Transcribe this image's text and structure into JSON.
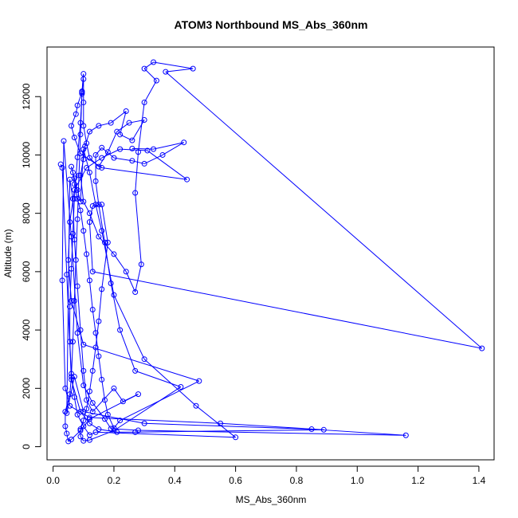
{
  "chart_data": {
    "type": "line",
    "title": "ATOM3 Northbound MS_Abs_360nm",
    "xlabel": "MS_Abs_360nm",
    "ylabel": "Altitude (m)",
    "xlim": [
      -0.02,
      1.45
    ],
    "ylim": [
      -450,
      13700
    ],
    "xticks": [
      "0.0",
      "0.2",
      "0.4",
      "0.6",
      "0.8",
      "1.0",
      "1.2",
      "1.4"
    ],
    "xtick_values": [
      0.0,
      0.2,
      0.4,
      0.6,
      0.8,
      1.0,
      1.2,
      1.4
    ],
    "yticks": [
      "0",
      "2000",
      "4000",
      "6000",
      "8000",
      "10000",
      "12000"
    ],
    "ytick_values": [
      0,
      2000,
      4000,
      6000,
      8000,
      10000,
      12000
    ],
    "grid": false,
    "series": [
      {
        "color": "#0000ff",
        "marker": "open-circle",
        "points": [
          [
            0.025,
            9680
          ],
          [
            0.03,
            9560
          ],
          [
            0.045,
            5900
          ],
          [
            0.06,
            2300
          ],
          [
            0.09,
            1200
          ],
          [
            0.12,
            800
          ],
          [
            0.15,
            600
          ],
          [
            0.21,
            500
          ],
          [
            0.27,
            500
          ],
          [
            0.89,
            580
          ],
          [
            0.55,
            800
          ],
          [
            0.12,
            1000
          ],
          [
            0.055,
            1400
          ],
          [
            0.04,
            2000
          ],
          [
            0.03,
            5700
          ],
          [
            0.035,
            10480
          ],
          [
            0.06,
            7200
          ],
          [
            0.08,
            3900
          ],
          [
            0.1,
            2100
          ],
          [
            0.13,
            1500
          ],
          [
            0.17,
            950
          ],
          [
            0.19,
            620
          ],
          [
            0.28,
            560
          ],
          [
            1.16,
            390
          ],
          [
            0.85,
            600
          ],
          [
            0.3,
            800
          ],
          [
            0.1,
            1200
          ],
          [
            0.07,
            2400
          ],
          [
            0.045,
            1150
          ],
          [
            0.055,
            9160
          ],
          [
            0.065,
            8500
          ],
          [
            0.07,
            7100
          ],
          [
            0.08,
            5500
          ],
          [
            0.09,
            4000
          ],
          [
            0.1,
            2600
          ],
          [
            0.11,
            1600
          ],
          [
            0.13,
            1200
          ],
          [
            0.2,
            2000
          ],
          [
            0.23,
            1550
          ],
          [
            0.28,
            1800
          ],
          [
            0.12,
            950
          ],
          [
            0.09,
            550
          ],
          [
            0.06,
            250
          ],
          [
            0.05,
            180
          ],
          [
            0.045,
            450
          ],
          [
            0.04,
            700
          ],
          [
            0.04,
            1200
          ],
          [
            0.055,
            1800
          ],
          [
            0.06,
            2400
          ],
          [
            0.065,
            3600
          ],
          [
            0.07,
            5000
          ],
          [
            0.075,
            6400
          ],
          [
            0.08,
            7800
          ],
          [
            0.085,
            9300
          ],
          [
            0.09,
            10700
          ],
          [
            0.095,
            12180
          ],
          [
            0.1,
            12780
          ],
          [
            0.095,
            12100
          ],
          [
            0.09,
            11100
          ],
          [
            0.08,
            9920
          ],
          [
            0.07,
            8500
          ],
          [
            0.065,
            7300
          ],
          [
            0.06,
            6100
          ],
          [
            0.055,
            4800
          ],
          [
            0.055,
            3600
          ],
          [
            0.06,
            2500
          ],
          [
            0.07,
            1700
          ],
          [
            0.08,
            1100
          ],
          [
            0.1,
            700
          ],
          [
            0.12,
            400
          ],
          [
            0.14,
            500
          ],
          [
            0.6,
            320
          ],
          [
            0.47,
            1400
          ],
          [
            0.3,
            3000
          ],
          [
            0.2,
            5200
          ],
          [
            0.16,
            7400
          ],
          [
            0.14,
            8300
          ],
          [
            0.12,
            9400
          ],
          [
            0.1,
            10200
          ],
          [
            0.09,
            8400
          ],
          [
            0.08,
            8800
          ],
          [
            0.07,
            9200
          ],
          [
            0.06,
            9600
          ],
          [
            0.065,
            9400
          ],
          [
            0.07,
            9000
          ],
          [
            0.08,
            8500
          ],
          [
            0.09,
            8100
          ],
          [
            0.1,
            7400
          ],
          [
            0.11,
            6600
          ],
          [
            0.12,
            5700
          ],
          [
            0.13,
            4700
          ],
          [
            0.14,
            3900
          ],
          [
            0.15,
            3100
          ],
          [
            0.16,
            2300
          ],
          [
            0.17,
            1600
          ],
          [
            0.18,
            1100
          ],
          [
            0.2,
            640
          ],
          [
            0.22,
            900
          ],
          [
            0.48,
            2250
          ],
          [
            0.1,
            3500
          ],
          [
            0.06,
            5000
          ],
          [
            0.05,
            6400
          ],
          [
            0.055,
            7700
          ],
          [
            0.07,
            8800
          ],
          [
            0.11,
            9560
          ],
          [
            0.16,
            9900
          ],
          [
            0.22,
            10200
          ],
          [
            0.31,
            10150
          ],
          [
            0.44,
            9160
          ],
          [
            0.16,
            9560
          ],
          [
            0.09,
            10050
          ],
          [
            0.07,
            10600
          ],
          [
            0.06,
            11000
          ],
          [
            0.075,
            11400
          ],
          [
            0.08,
            11700
          ],
          [
            0.095,
            12150
          ],
          [
            0.1,
            12600
          ],
          [
            0.1,
            11800
          ],
          [
            0.1,
            11000
          ],
          [
            0.11,
            10400
          ],
          [
            0.12,
            9900
          ],
          [
            0.15,
            9600
          ],
          [
            0.18,
            10100
          ],
          [
            0.21,
            10800
          ],
          [
            0.25,
            11100
          ],
          [
            0.3,
            11200
          ],
          [
            0.26,
            10500
          ],
          [
            0.22,
            10700
          ],
          [
            0.24,
            11500
          ],
          [
            0.19,
            11100
          ],
          [
            0.15,
            11000
          ],
          [
            0.12,
            10800
          ],
          [
            0.105,
            10300
          ],
          [
            0.1,
            9850
          ],
          [
            0.09,
            9300
          ],
          [
            0.1,
            8400
          ],
          [
            0.12,
            8000
          ],
          [
            0.15,
            7200
          ],
          [
            0.2,
            6600
          ],
          [
            0.24,
            6000
          ],
          [
            0.27,
            5300
          ],
          [
            0.29,
            6250
          ],
          [
            0.27,
            8700
          ],
          [
            0.28,
            10100
          ],
          [
            0.3,
            11800
          ],
          [
            0.34,
            12550
          ],
          [
            0.3,
            12960
          ],
          [
            0.33,
            13180
          ],
          [
            0.46,
            12960
          ],
          [
            0.37,
            12850
          ],
          [
            1.41,
            3370
          ],
          [
            0.13,
            6000
          ],
          [
            0.12,
            7700
          ],
          [
            0.13,
            8250
          ],
          [
            0.16,
            8300
          ],
          [
            0.18,
            7000
          ],
          [
            0.16,
            5400
          ],
          [
            0.15,
            4300
          ],
          [
            0.14,
            3400
          ],
          [
            0.13,
            2600
          ],
          [
            0.12,
            1900
          ],
          [
            0.11,
            1300
          ],
          [
            0.1,
            900
          ],
          [
            0.09,
            600
          ],
          [
            0.09,
            350
          ],
          [
            0.1,
            200
          ],
          [
            0.12,
            230
          ],
          [
            0.2,
            550
          ],
          [
            0.42,
            2050
          ],
          [
            0.27,
            2600
          ],
          [
            0.22,
            4000
          ],
          [
            0.19,
            5600
          ],
          [
            0.17,
            7000
          ],
          [
            0.15,
            8300
          ],
          [
            0.14,
            9100
          ],
          [
            0.14,
            10000
          ],
          [
            0.16,
            10250
          ],
          [
            0.2,
            9900
          ],
          [
            0.26,
            9800
          ],
          [
            0.3,
            9700
          ],
          [
            0.36,
            10000
          ],
          [
            0.43,
            10430
          ],
          [
            0.33,
            10200
          ],
          [
            0.26,
            10220
          ]
        ]
      }
    ]
  }
}
